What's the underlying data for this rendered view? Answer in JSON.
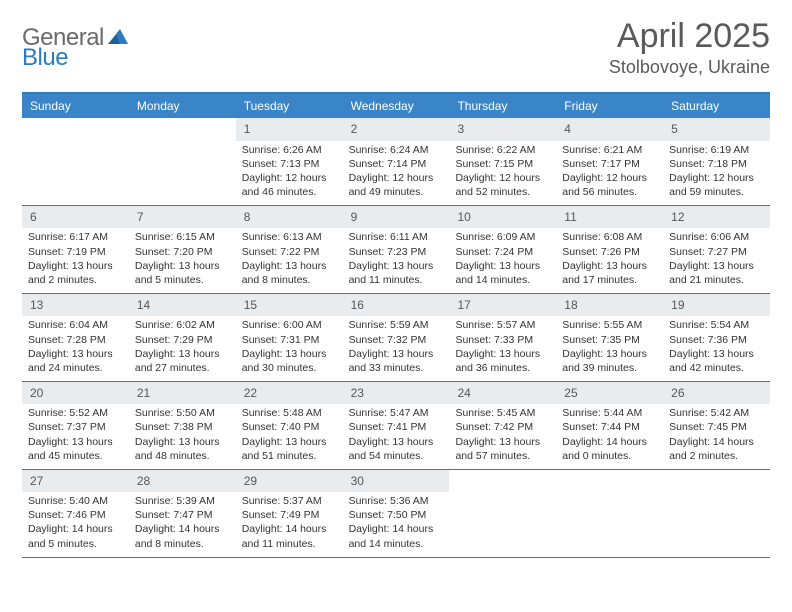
{
  "brand": {
    "part1": "General",
    "part2": "Blue"
  },
  "title": "April 2025",
  "location": "Stolbovoye, Ukraine",
  "colors": {
    "header_bg": "#3a85c8",
    "border": "#2d7bc0",
    "daynum_bg": "#e9ecef",
    "text": "#333333",
    "title_text": "#5a5a5a"
  },
  "weekdays": [
    "Sunday",
    "Monday",
    "Tuesday",
    "Wednesday",
    "Thursday",
    "Friday",
    "Saturday"
  ],
  "weeks": [
    [
      {
        "n": "",
        "sr": "",
        "ss": "",
        "dl1": "",
        "dl2": "",
        "empty": true
      },
      {
        "n": "",
        "sr": "",
        "ss": "",
        "dl1": "",
        "dl2": "",
        "empty": true
      },
      {
        "n": "1",
        "sr": "Sunrise: 6:26 AM",
        "ss": "Sunset: 7:13 PM",
        "dl1": "Daylight: 12 hours",
        "dl2": "and 46 minutes."
      },
      {
        "n": "2",
        "sr": "Sunrise: 6:24 AM",
        "ss": "Sunset: 7:14 PM",
        "dl1": "Daylight: 12 hours",
        "dl2": "and 49 minutes."
      },
      {
        "n": "3",
        "sr": "Sunrise: 6:22 AM",
        "ss": "Sunset: 7:15 PM",
        "dl1": "Daylight: 12 hours",
        "dl2": "and 52 minutes."
      },
      {
        "n": "4",
        "sr": "Sunrise: 6:21 AM",
        "ss": "Sunset: 7:17 PM",
        "dl1": "Daylight: 12 hours",
        "dl2": "and 56 minutes."
      },
      {
        "n": "5",
        "sr": "Sunrise: 6:19 AM",
        "ss": "Sunset: 7:18 PM",
        "dl1": "Daylight: 12 hours",
        "dl2": "and 59 minutes."
      }
    ],
    [
      {
        "n": "6",
        "sr": "Sunrise: 6:17 AM",
        "ss": "Sunset: 7:19 PM",
        "dl1": "Daylight: 13 hours",
        "dl2": "and 2 minutes."
      },
      {
        "n": "7",
        "sr": "Sunrise: 6:15 AM",
        "ss": "Sunset: 7:20 PM",
        "dl1": "Daylight: 13 hours",
        "dl2": "and 5 minutes."
      },
      {
        "n": "8",
        "sr": "Sunrise: 6:13 AM",
        "ss": "Sunset: 7:22 PM",
        "dl1": "Daylight: 13 hours",
        "dl2": "and 8 minutes."
      },
      {
        "n": "9",
        "sr": "Sunrise: 6:11 AM",
        "ss": "Sunset: 7:23 PM",
        "dl1": "Daylight: 13 hours",
        "dl2": "and 11 minutes."
      },
      {
        "n": "10",
        "sr": "Sunrise: 6:09 AM",
        "ss": "Sunset: 7:24 PM",
        "dl1": "Daylight: 13 hours",
        "dl2": "and 14 minutes."
      },
      {
        "n": "11",
        "sr": "Sunrise: 6:08 AM",
        "ss": "Sunset: 7:26 PM",
        "dl1": "Daylight: 13 hours",
        "dl2": "and 17 minutes."
      },
      {
        "n": "12",
        "sr": "Sunrise: 6:06 AM",
        "ss": "Sunset: 7:27 PM",
        "dl1": "Daylight: 13 hours",
        "dl2": "and 21 minutes."
      }
    ],
    [
      {
        "n": "13",
        "sr": "Sunrise: 6:04 AM",
        "ss": "Sunset: 7:28 PM",
        "dl1": "Daylight: 13 hours",
        "dl2": "and 24 minutes."
      },
      {
        "n": "14",
        "sr": "Sunrise: 6:02 AM",
        "ss": "Sunset: 7:29 PM",
        "dl1": "Daylight: 13 hours",
        "dl2": "and 27 minutes."
      },
      {
        "n": "15",
        "sr": "Sunrise: 6:00 AM",
        "ss": "Sunset: 7:31 PM",
        "dl1": "Daylight: 13 hours",
        "dl2": "and 30 minutes."
      },
      {
        "n": "16",
        "sr": "Sunrise: 5:59 AM",
        "ss": "Sunset: 7:32 PM",
        "dl1": "Daylight: 13 hours",
        "dl2": "and 33 minutes."
      },
      {
        "n": "17",
        "sr": "Sunrise: 5:57 AM",
        "ss": "Sunset: 7:33 PM",
        "dl1": "Daylight: 13 hours",
        "dl2": "and 36 minutes."
      },
      {
        "n": "18",
        "sr": "Sunrise: 5:55 AM",
        "ss": "Sunset: 7:35 PM",
        "dl1": "Daylight: 13 hours",
        "dl2": "and 39 minutes."
      },
      {
        "n": "19",
        "sr": "Sunrise: 5:54 AM",
        "ss": "Sunset: 7:36 PM",
        "dl1": "Daylight: 13 hours",
        "dl2": "and 42 minutes."
      }
    ],
    [
      {
        "n": "20",
        "sr": "Sunrise: 5:52 AM",
        "ss": "Sunset: 7:37 PM",
        "dl1": "Daylight: 13 hours",
        "dl2": "and 45 minutes."
      },
      {
        "n": "21",
        "sr": "Sunrise: 5:50 AM",
        "ss": "Sunset: 7:38 PM",
        "dl1": "Daylight: 13 hours",
        "dl2": "and 48 minutes."
      },
      {
        "n": "22",
        "sr": "Sunrise: 5:48 AM",
        "ss": "Sunset: 7:40 PM",
        "dl1": "Daylight: 13 hours",
        "dl2": "and 51 minutes."
      },
      {
        "n": "23",
        "sr": "Sunrise: 5:47 AM",
        "ss": "Sunset: 7:41 PM",
        "dl1": "Daylight: 13 hours",
        "dl2": "and 54 minutes."
      },
      {
        "n": "24",
        "sr": "Sunrise: 5:45 AM",
        "ss": "Sunset: 7:42 PM",
        "dl1": "Daylight: 13 hours",
        "dl2": "and 57 minutes."
      },
      {
        "n": "25",
        "sr": "Sunrise: 5:44 AM",
        "ss": "Sunset: 7:44 PM",
        "dl1": "Daylight: 14 hours",
        "dl2": "and 0 minutes."
      },
      {
        "n": "26",
        "sr": "Sunrise: 5:42 AM",
        "ss": "Sunset: 7:45 PM",
        "dl1": "Daylight: 14 hours",
        "dl2": "and 2 minutes."
      }
    ],
    [
      {
        "n": "27",
        "sr": "Sunrise: 5:40 AM",
        "ss": "Sunset: 7:46 PM",
        "dl1": "Daylight: 14 hours",
        "dl2": "and 5 minutes."
      },
      {
        "n": "28",
        "sr": "Sunrise: 5:39 AM",
        "ss": "Sunset: 7:47 PM",
        "dl1": "Daylight: 14 hours",
        "dl2": "and 8 minutes."
      },
      {
        "n": "29",
        "sr": "Sunrise: 5:37 AM",
        "ss": "Sunset: 7:49 PM",
        "dl1": "Daylight: 14 hours",
        "dl2": "and 11 minutes."
      },
      {
        "n": "30",
        "sr": "Sunrise: 5:36 AM",
        "ss": "Sunset: 7:50 PM",
        "dl1": "Daylight: 14 hours",
        "dl2": "and 14 minutes."
      },
      {
        "n": "",
        "sr": "",
        "ss": "",
        "dl1": "",
        "dl2": "",
        "empty": true
      },
      {
        "n": "",
        "sr": "",
        "ss": "",
        "dl1": "",
        "dl2": "",
        "empty": true
      },
      {
        "n": "",
        "sr": "",
        "ss": "",
        "dl1": "",
        "dl2": "",
        "empty": true
      }
    ]
  ]
}
